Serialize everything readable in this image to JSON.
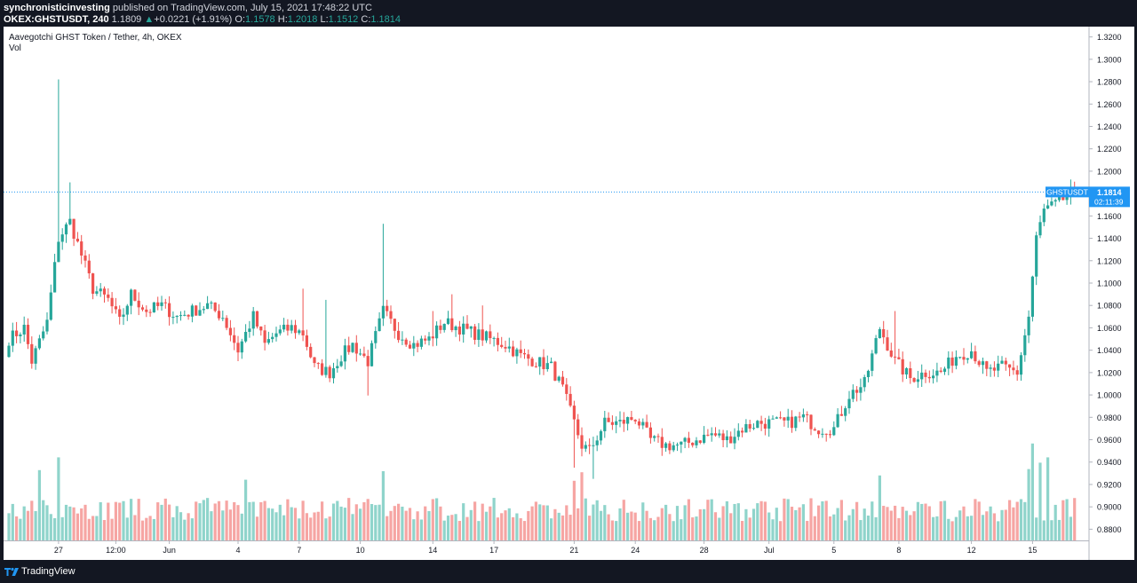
{
  "header": {
    "author": "synchronisticinvesting",
    "published_text": " published on TradingView.com, July 15, 2021 17:48:22 UTC",
    "symbol": "OKEX:GHSTUSDT, 240",
    "last": "1.1809",
    "change_arrow": "▲",
    "change": "+0.0221 (+1.91%)",
    "o_label": "O:",
    "o_value": "1.1578",
    "h_label": "H:",
    "h_value": "1.2018",
    "l_label": "L:",
    "l_value": "1.1512",
    "c_label": "C:",
    "c_value": "1.1814"
  },
  "legend": {
    "title": "Aavegotchi GHST Token / Tether, 4h, OKEX",
    "volume": "Vol"
  },
  "price_tag": {
    "symbol": "GHSTUSDT",
    "price": "1.1814",
    "countdown": "02:11:39"
  },
  "footer": {
    "brand": "TradingView",
    "logo_icon": "tradingview-logo-icon"
  },
  "colors": {
    "background": "#131722",
    "up": "#26a69a",
    "down": "#ef5350",
    "vol_up": "#8fd4cb",
    "vol_down": "#f6a5a3",
    "price_tag": "#2196f3"
  },
  "chart_data": {
    "type": "candlestick",
    "title": "Aavegotchi GHST Token / Tether, 4h, OKEX",
    "symbol": "OKEX:GHSTUSDT",
    "interval": "240",
    "y_ticks": [
      "1.3200",
      "1.3000",
      "1.2800",
      "1.2600",
      "1.2400",
      "1.2200",
      "1.2000",
      "1.1800",
      "1.1600",
      "1.1400",
      "1.1200",
      "1.1000",
      "1.0800",
      "1.0600",
      "1.0400",
      "1.0200",
      "1.0000",
      "0.9800",
      "0.9600",
      "0.9400",
      "0.9200",
      "0.9000",
      "0.8800"
    ],
    "ylim": [
      0.87,
      1.33
    ],
    "x_tick_labels": [
      "27",
      "12:00",
      "Jun",
      "4",
      "7",
      "10",
      "14",
      "17",
      "21",
      "24",
      "28",
      "Jul",
      "5",
      "8",
      "12",
      "15"
    ],
    "x_tick_bar_index": [
      13,
      28,
      42,
      60,
      76,
      92,
      111,
      127,
      148,
      164,
      182,
      199,
      216,
      233,
      252,
      268
    ],
    "bar_count": 280,
    "last_price": 1.1814,
    "grid": false,
    "legend_position": "top-left",
    "anchors": [
      [
        0,
        1.05
      ],
      [
        4,
        1.06
      ],
      [
        6,
        1.03
      ],
      [
        10,
        1.065
      ],
      [
        13,
        1.14
      ],
      [
        16,
        1.155
      ],
      [
        19,
        1.125
      ],
      [
        22,
        1.095
      ],
      [
        26,
        1.085
      ],
      [
        29,
        1.065
      ],
      [
        32,
        1.09
      ],
      [
        36,
        1.075
      ],
      [
        40,
        1.08
      ],
      [
        44,
        1.07
      ],
      [
        48,
        1.075
      ],
      [
        52,
        1.08
      ],
      [
        56,
        1.07
      ],
      [
        60,
        1.04
      ],
      [
        64,
        1.07
      ],
      [
        67,
        1.045
      ],
      [
        70,
        1.055
      ],
      [
        74,
        1.06
      ],
      [
        77,
        1.055
      ],
      [
        80,
        1.025
      ],
      [
        84,
        1.02
      ],
      [
        87,
        1.035
      ],
      [
        90,
        1.045
      ],
      [
        94,
        1.03
      ],
      [
        98,
        1.075
      ],
      [
        102,
        1.055
      ],
      [
        106,
        1.045
      ],
      [
        110,
        1.05
      ],
      [
        114,
        1.065
      ],
      [
        118,
        1.06
      ],
      [
        122,
        1.055
      ],
      [
        126,
        1.05
      ],
      [
        130,
        1.045
      ],
      [
        134,
        1.035
      ],
      [
        138,
        1.03
      ],
      [
        142,
        1.025
      ],
      [
        145,
        1.005
      ],
      [
        148,
        0.975
      ],
      [
        150,
        0.955
      ],
      [
        152,
        0.95
      ],
      [
        156,
        0.975
      ],
      [
        160,
        0.975
      ],
      [
        164,
        0.98
      ],
      [
        168,
        0.96
      ],
      [
        172,
        0.955
      ],
      [
        176,
        0.955
      ],
      [
        180,
        0.96
      ],
      [
        184,
        0.965
      ],
      [
        188,
        0.96
      ],
      [
        192,
        0.97
      ],
      [
        196,
        0.975
      ],
      [
        200,
        0.975
      ],
      [
        204,
        0.975
      ],
      [
        208,
        0.98
      ],
      [
        212,
        0.97
      ],
      [
        216,
        0.97
      ],
      [
        220,
        1.0
      ],
      [
        224,
        1.01
      ],
      [
        228,
        1.06
      ],
      [
        232,
        1.03
      ],
      [
        236,
        1.015
      ],
      [
        240,
        1.02
      ],
      [
        244,
        1.02
      ],
      [
        248,
        1.035
      ],
      [
        252,
        1.04
      ],
      [
        256,
        1.02
      ],
      [
        260,
        1.025
      ],
      [
        264,
        1.02
      ],
      [
        267,
        1.07
      ],
      [
        269,
        1.14
      ],
      [
        271,
        1.165
      ],
      [
        274,
        1.17
      ],
      [
        276,
        1.175
      ],
      [
        279,
        1.1814
      ]
    ],
    "spikes": [
      [
        13,
        1.282,
        "high"
      ],
      [
        16,
        1.19,
        "high"
      ],
      [
        98,
        1.153,
        "high"
      ],
      [
        77,
        1.095,
        "high"
      ],
      [
        83,
        1.085,
        "high"
      ],
      [
        116,
        1.09,
        "high"
      ],
      [
        232,
        1.075,
        "high"
      ],
      [
        124,
        1.08,
        "high"
      ],
      [
        148,
        0.935,
        "low"
      ],
      [
        153,
        0.925,
        "low"
      ],
      [
        94,
        0.9995,
        "low"
      ],
      [
        111,
        1.075,
        "high"
      ]
    ],
    "volume_spikes": [
      [
        13,
        0.78
      ],
      [
        8,
        0.66
      ],
      [
        98,
        0.65
      ],
      [
        148,
        0.56
      ],
      [
        150,
        0.64
      ],
      [
        228,
        0.61
      ],
      [
        267,
        0.67
      ],
      [
        268,
        0.91
      ],
      [
        270,
        0.73
      ],
      [
        272,
        0.78
      ],
      [
        62,
        0.57
      ]
    ],
    "volume_max_label": "Vol"
  }
}
